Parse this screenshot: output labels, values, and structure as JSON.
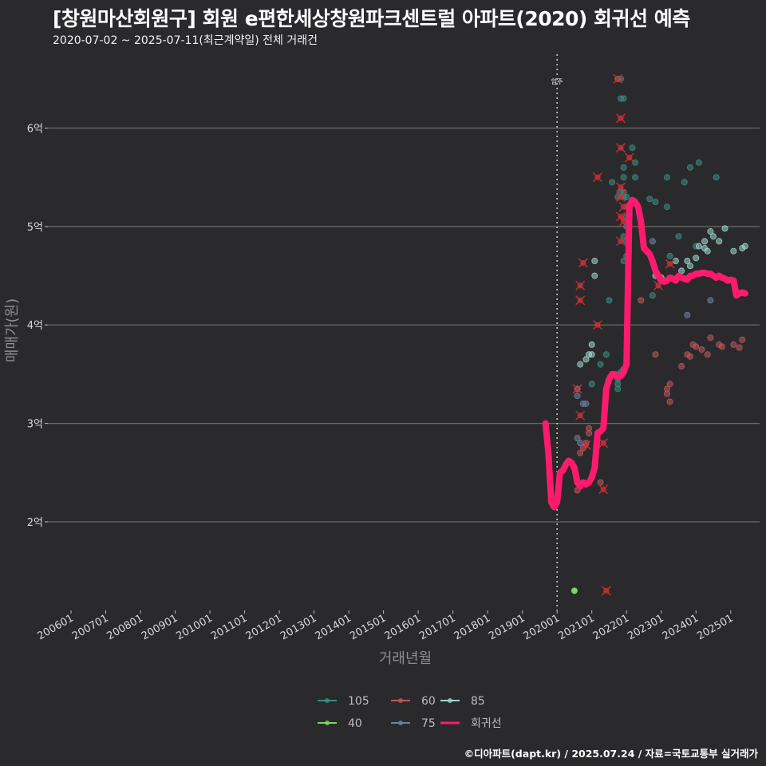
{
  "header": {
    "title": "[창원마산회원구] 회원 e편한세상창원파크센트럴 아파트(2020) 회귀선 예측",
    "subtitle": "2020-07-02 ~ 2025-07-11(최근계약일) 전체 거래건",
    "caption": "©디아파트(dapt.kr) / 2025.07.24 / 자료=국토교통부 실거래가"
  },
  "chart_data": {
    "type": "scatter",
    "title": "[창원마산회원구] 회원 e편한세상창원파크센트럴 아파트(2020) 회귀선 예측",
    "subtitle": "2020-07-02 ~ 2025-07-11(최근계약일) 전체 거래건",
    "xlabel": "거래년월",
    "ylabel": "매매가(원)",
    "x_range": [
      "2005-05",
      "2025-11"
    ],
    "y_range": [
      1.1,
      6.75
    ],
    "y_unit": "억",
    "y_ticks": [
      2,
      3,
      4,
      5,
      6
    ],
    "y_tick_labels": [
      "2억",
      "3억",
      "4억",
      "5억",
      "6억"
    ],
    "x_ticks": [
      "2006-01",
      "2007-01",
      "2008-01",
      "2009-01",
      "2010-01",
      "2011-01",
      "2012-01",
      "2013-01",
      "2014-01",
      "2015-01",
      "2016-01",
      "2017-01",
      "2018-01",
      "2019-01",
      "2020-01",
      "2021-01",
      "2022-01",
      "2023-01",
      "2024-01",
      "2025-01"
    ],
    "x_tick_labels": [
      "200601",
      "200701",
      "200801",
      "200901",
      "201001",
      "201101",
      "201201",
      "201301",
      "201401",
      "201501",
      "201601",
      "201701",
      "201801",
      "201901",
      "202001",
      "202101",
      "202201",
      "202301",
      "202401",
      "202501"
    ],
    "grid": "horizontal",
    "legend_position": "bottom",
    "annotation": {
      "label": "입주",
      "x": "2020-01"
    },
    "colors": {
      "105": "#3d8c84",
      "40": "#7fd36b",
      "60": "#c0575c",
      "75": "#6f7fa6",
      "85": "#9fd7d0",
      "회귀선": "#ff1a6e",
      "cancel_mark": "#d6242a"
    },
    "legend": [
      {
        "key": "105",
        "label": "105"
      },
      {
        "key": "40",
        "label": "40"
      },
      {
        "key": "60",
        "label": "60"
      },
      {
        "key": "75",
        "label": "75"
      },
      {
        "key": "85",
        "label": "85"
      },
      {
        "key": "회귀선",
        "label": "회귀선"
      }
    ],
    "series": [
      {
        "name": "105",
        "points": [
          [
            "2021-07",
            4.25
          ],
          [
            "2021-01",
            3.4
          ],
          [
            "2021-04",
            3.6
          ],
          [
            "2021-06",
            3.7
          ],
          [
            "2021-10",
            3.35
          ],
          [
            "2021-10",
            3.4
          ],
          [
            "2021-10",
            3.45
          ],
          [
            "2021-11",
            3.5
          ],
          [
            "2021-11",
            3.52
          ],
          [
            "2021-12",
            3.55
          ],
          [
            "2021-08",
            5.45
          ],
          [
            "2021-10",
            5.3
          ],
          [
            "2021-11",
            5.35
          ],
          [
            "2021-10",
            6.5
          ],
          [
            "2021-11",
            6.3
          ],
          [
            "2021-11",
            6.5
          ],
          [
            "2021-12",
            6.3
          ],
          [
            "2021-12",
            5.6
          ],
          [
            "2021-12",
            5.5
          ],
          [
            "2021-12",
            5.35
          ],
          [
            "2021-12",
            5.3
          ],
          [
            "2022-01",
            5.2
          ],
          [
            "2022-01",
            5.3
          ],
          [
            "2022-01",
            5.1
          ],
          [
            "2022-01",
            5.0
          ],
          [
            "2021-12",
            4.9
          ],
          [
            "2021-12",
            4.65
          ],
          [
            "2022-01",
            4.85
          ],
          [
            "2022-01",
            4.7
          ],
          [
            "2022-03",
            5.8
          ],
          [
            "2022-04",
            5.65
          ],
          [
            "2022-04",
            5.5
          ],
          [
            "2022-09",
            5.28
          ],
          [
            "2022-11",
            5.25
          ],
          [
            "2022-10",
            4.3
          ],
          [
            "2023-03",
            5.5
          ],
          [
            "2023-03",
            5.2
          ],
          [
            "2023-04",
            4.7
          ],
          [
            "2023-09",
            5.45
          ],
          [
            "2023-11",
            5.6
          ],
          [
            "2024-02",
            5.65
          ],
          [
            "2024-08",
            5.5
          ],
          [
            "2023-07",
            4.9
          ],
          [
            "2024-01",
            4.8
          ]
        ]
      },
      {
        "name": "40",
        "points": [
          [
            "2020-07",
            1.3
          ]
        ]
      },
      {
        "name": "60",
        "points": [
          [
            "2020-08",
            2.32
          ],
          [
            "2020-09",
            2.7
          ],
          [
            "2020-10",
            2.75
          ],
          [
            "2020-11",
            2.8
          ],
          [
            "2020-12",
            2.9
          ],
          [
            "2020-12",
            2.95
          ],
          [
            "2021-04",
            2.4
          ],
          [
            "2022-06",
            4.25
          ],
          [
            "2022-11",
            3.7
          ],
          [
            "2023-03",
            3.3
          ],
          [
            "2023-03",
            3.35
          ],
          [
            "2023-04",
            3.22
          ],
          [
            "2023-04",
            3.4
          ],
          [
            "2023-08",
            3.58
          ],
          [
            "2023-10",
            3.7
          ],
          [
            "2023-11",
            3.68
          ],
          [
            "2023-12",
            3.8
          ],
          [
            "2024-01",
            3.78
          ],
          [
            "2024-03",
            3.75
          ],
          [
            "2024-05",
            3.7
          ],
          [
            "2024-06",
            3.87
          ],
          [
            "2024-09",
            3.8
          ],
          [
            "2024-10",
            3.78
          ],
          [
            "2025-02",
            3.8
          ],
          [
            "2025-04",
            3.77
          ],
          [
            "2025-05",
            3.85
          ]
        ]
      },
      {
        "name": "75",
        "points": [
          [
            "2020-08",
            3.28
          ],
          [
            "2020-08",
            3.35
          ],
          [
            "2020-08",
            2.85
          ],
          [
            "2020-09",
            2.8
          ],
          [
            "2020-10",
            3.2
          ],
          [
            "2020-11",
            3.2
          ],
          [
            "2022-10",
            4.85
          ],
          [
            "2023-10",
            4.1
          ],
          [
            "2024-06",
            4.25
          ]
        ]
      },
      {
        "name": "85",
        "points": [
          [
            "2020-09",
            3.6
          ],
          [
            "2020-11",
            3.65
          ],
          [
            "2020-12",
            3.7
          ],
          [
            "2021-01",
            3.8
          ],
          [
            "2021-01",
            3.7
          ],
          [
            "2021-02",
            4.5
          ],
          [
            "2021-02",
            4.65
          ],
          [
            "2022-11",
            4.5
          ],
          [
            "2023-01",
            4.48
          ],
          [
            "2023-06",
            4.65
          ],
          [
            "2023-08",
            4.55
          ],
          [
            "2024-01",
            4.68
          ],
          [
            "2024-02",
            4.8
          ],
          [
            "2024-04",
            4.85
          ],
          [
            "2024-05",
            4.75
          ],
          [
            "2024-06",
            4.95
          ],
          [
            "2024-09",
            4.85
          ],
          [
            "2024-11",
            4.98
          ],
          [
            "2024-04",
            4.78
          ],
          [
            "2025-02",
            4.75
          ],
          [
            "2025-05",
            4.78
          ],
          [
            "2025-06",
            4.8
          ],
          [
            "2023-11",
            4.6
          ],
          [
            "2023-10",
            4.65
          ],
          [
            "2024-07",
            4.9
          ]
        ]
      }
    ],
    "cancelled": [
      [
        "2021-10",
        6.5
      ],
      [
        "2021-11",
        6.1
      ],
      [
        "2021-11",
        5.8
      ],
      [
        "2021-11",
        5.4
      ],
      [
        "2021-11",
        5.3
      ],
      [
        "2021-12",
        5.2
      ],
      [
        "2021-11",
        5.1
      ],
      [
        "2021-12",
        5.05
      ],
      [
        "2021-11",
        4.85
      ],
      [
        "2022-02",
        5.7
      ],
      [
        "2021-03",
        5.5
      ],
      [
        "2020-10",
        4.63
      ],
      [
        "2020-09",
        4.4
      ],
      [
        "2020-09",
        4.25
      ],
      [
        "2021-03",
        4.0
      ],
      [
        "2020-08",
        3.35
      ],
      [
        "2020-09",
        3.08
      ],
      [
        "2020-11",
        2.78
      ],
      [
        "2021-05",
        2.8
      ],
      [
        "2021-05",
        2.33
      ],
      [
        "2021-06",
        1.3
      ],
      [
        "2023-04",
        4.62
      ],
      [
        "2022-12",
        4.4
      ]
    ],
    "regression": [
      [
        "2019-09",
        3.0
      ],
      [
        "2019-10",
        2.7
      ],
      [
        "2019-11",
        2.2
      ],
      [
        "2019-12",
        2.15
      ],
      [
        "2020-01",
        2.2
      ],
      [
        "2020-02",
        2.5
      ],
      [
        "2020-03",
        2.52
      ],
      [
        "2020-04",
        2.58
      ],
      [
        "2020-05",
        2.62
      ],
      [
        "2020-06",
        2.6
      ],
      [
        "2020-07",
        2.55
      ],
      [
        "2020-08",
        2.4
      ],
      [
        "2020-09",
        2.36
      ],
      [
        "2020-10",
        2.4
      ],
      [
        "2020-11",
        2.38
      ],
      [
        "2020-12",
        2.4
      ],
      [
        "2021-01",
        2.45
      ],
      [
        "2021-02",
        2.55
      ],
      [
        "2021-03",
        2.9
      ],
      [
        "2021-04",
        2.92
      ],
      [
        "2021-05",
        2.95
      ],
      [
        "2021-06",
        3.35
      ],
      [
        "2021-07",
        3.45
      ],
      [
        "2021-08",
        3.5
      ],
      [
        "2021-09",
        3.5
      ],
      [
        "2021-10",
        3.47
      ],
      [
        "2021-11",
        3.48
      ],
      [
        "2021-12",
        3.52
      ],
      [
        "2022-01",
        3.6
      ],
      [
        "2022-02",
        5.2
      ],
      [
        "2022-03",
        5.27
      ],
      [
        "2022-04",
        5.25
      ],
      [
        "2022-05",
        5.2
      ],
      [
        "2022-06",
        5.05
      ],
      [
        "2022-07",
        4.78
      ],
      [
        "2022-08",
        4.75
      ],
      [
        "2022-09",
        4.72
      ],
      [
        "2022-10",
        4.65
      ],
      [
        "2022-11",
        4.55
      ],
      [
        "2022-12",
        4.5
      ],
      [
        "2023-01",
        4.45
      ],
      [
        "2023-02",
        4.44
      ],
      [
        "2023-03",
        4.45
      ],
      [
        "2023-04",
        4.48
      ],
      [
        "2023-05",
        4.47
      ],
      [
        "2023-06",
        4.45
      ],
      [
        "2023-07",
        4.5
      ],
      [
        "2023-08",
        4.48
      ],
      [
        "2023-09",
        4.47
      ],
      [
        "2023-10",
        4.46
      ],
      [
        "2023-11",
        4.5
      ],
      [
        "2023-12",
        4.5
      ],
      [
        "2024-01",
        4.52
      ],
      [
        "2024-02",
        4.52
      ],
      [
        "2024-03",
        4.53
      ],
      [
        "2024-04",
        4.53
      ],
      [
        "2024-05",
        4.52
      ],
      [
        "2024-06",
        4.52
      ],
      [
        "2024-07",
        4.5
      ],
      [
        "2024-08",
        4.48
      ],
      [
        "2024-09",
        4.5
      ],
      [
        "2024-10",
        4.48
      ],
      [
        "2024-11",
        4.47
      ],
      [
        "2024-12",
        4.45
      ],
      [
        "2025-01",
        4.46
      ],
      [
        "2025-02",
        4.45
      ],
      [
        "2025-03",
        4.3
      ],
      [
        "2025-04",
        4.32
      ],
      [
        "2025-05",
        4.33
      ],
      [
        "2025-06",
        4.32
      ]
    ]
  }
}
